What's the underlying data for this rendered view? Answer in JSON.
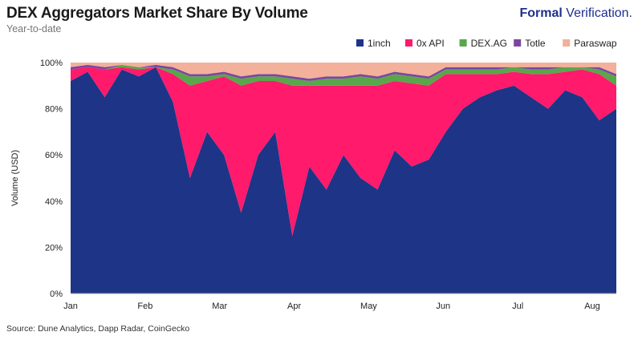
{
  "header": {
    "title": "DEX Aggregators Market Share By Volume",
    "subtitle": "Year-to-date",
    "brand_bold": "Formal",
    "brand_rest": " Verification."
  },
  "footer": {
    "source": "Source: Dune Analytics, Dapp Radar, CoinGecko"
  },
  "chart_data": {
    "type": "area",
    "stacked": true,
    "normalized": true,
    "ylabel": "Volume (USD)",
    "ylim": [
      0,
      100
    ],
    "yticks": [
      "0%",
      "20%",
      "40%",
      "60%",
      "80%",
      "100%"
    ],
    "xticks": [
      "Jan",
      "Feb",
      "Mar",
      "Apr",
      "May",
      "Jun",
      "Jul",
      "Aug"
    ],
    "legend_position": "top-right",
    "x": [
      "Jan-01",
      "Jan-08",
      "Jan-15",
      "Jan-22",
      "Jan-29",
      "Feb-05",
      "Feb-12",
      "Feb-19",
      "Feb-26",
      "Mar-04",
      "Mar-11",
      "Mar-18",
      "Mar-25",
      "Apr-01",
      "Apr-08",
      "Apr-15",
      "Apr-22",
      "Apr-29",
      "May-06",
      "May-13",
      "May-20",
      "May-27",
      "Jun-03",
      "Jun-10",
      "Jun-17",
      "Jun-24",
      "Jul-01",
      "Jul-08",
      "Jul-15",
      "Jul-22",
      "Jul-29",
      "Aug-05",
      "Aug-10"
    ],
    "series": [
      {
        "name": "1inch",
        "color": "#1e3487",
        "values": [
          92,
          96,
          85,
          97,
          94,
          98,
          83,
          50,
          70,
          60,
          35,
          60,
          70,
          25,
          55,
          45,
          60,
          50,
          45,
          62,
          55,
          58,
          70,
          80,
          85,
          88,
          90,
          85,
          80,
          88,
          85,
          75,
          80
        ]
      },
      {
        "name": "0x API",
        "color": "#ff1a6c",
        "values": [
          5,
          2,
          12,
          1,
          3,
          0,
          12,
          40,
          22,
          34,
          55,
          32,
          22,
          65,
          35,
          45,
          30,
          40,
          45,
          30,
          36,
          32,
          25,
          15,
          10,
          7,
          6,
          10,
          15,
          8,
          12,
          20,
          10
        ]
      },
      {
        "name": "DEX.AG",
        "color": "#5aa64a",
        "values": [
          0,
          0,
          0,
          1,
          1,
          0,
          2,
          4,
          2,
          1,
          3,
          2,
          2,
          3,
          2,
          3,
          3,
          4,
          3,
          3,
          3,
          3,
          2,
          2,
          2,
          2,
          2,
          2,
          2,
          2,
          1,
          2,
          4
        ]
      },
      {
        "name": "Totle",
        "color": "#7b46a0",
        "values": [
          1,
          1,
          1,
          0,
          0,
          1,
          1,
          1,
          1,
          1,
          1,
          1,
          1,
          1,
          1,
          1,
          1,
          1,
          1,
          1,
          1,
          1,
          1,
          1,
          1,
          1,
          0,
          1,
          1,
          0,
          0,
          1,
          1
        ]
      },
      {
        "name": "Paraswap",
        "color": "#f3b09a",
        "values": [
          2,
          1,
          2,
          1,
          2,
          1,
          2,
          5,
          5,
          4,
          6,
          5,
          5,
          6,
          7,
          6,
          6,
          5,
          6,
          4,
          5,
          6,
          2,
          2,
          2,
          2,
          2,
          2,
          2,
          2,
          2,
          2,
          5
        ]
      }
    ]
  }
}
